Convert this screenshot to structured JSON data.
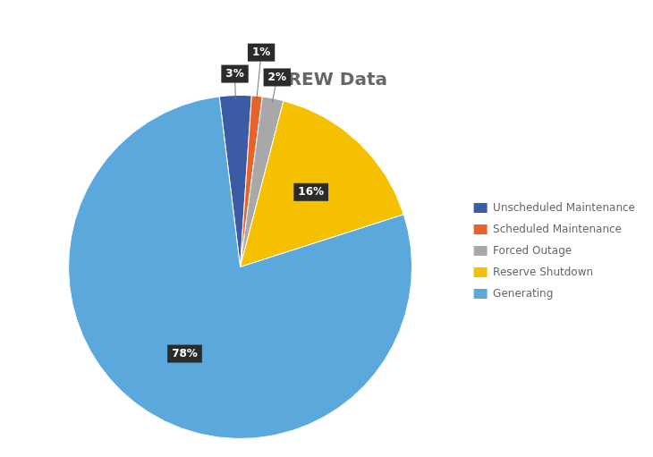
{
  "chart_data": {
    "type": "pie",
    "title": "CREW Data",
    "categories": [
      "Unscheduled Maintenance",
      "Scheduled Maintenance",
      "Forced Outage",
      "Reserve Shutdown",
      "Generating"
    ],
    "values": [
      3,
      1,
      2,
      16,
      78
    ],
    "value_labels": [
      "3%",
      "1%",
      "2%",
      "16%",
      "78%"
    ],
    "colors": [
      "#3B5BA5",
      "#E8622A",
      "#A8A8A8",
      "#F5C000",
      "#5BA8DC"
    ],
    "data_labels": true,
    "legend": "right"
  }
}
